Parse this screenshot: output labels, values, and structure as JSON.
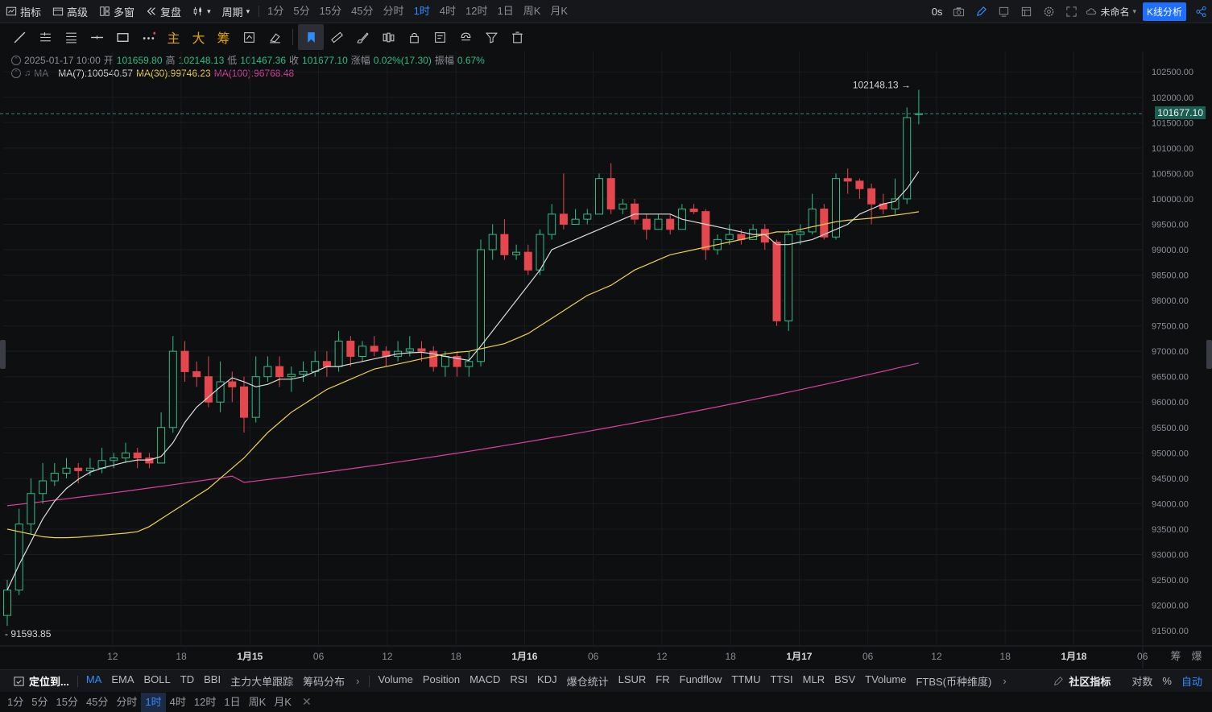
{
  "topbar": {
    "indicator_label": "指标",
    "advanced_label": "高级",
    "multiwindow_label": "多窗",
    "replay_label": "复盘",
    "period_label": "周期",
    "timeframes": [
      "1分",
      "5分",
      "15分",
      "45分",
      "分时",
      "1时",
      "4时",
      "12时",
      "1日",
      "周K",
      "月K"
    ],
    "active_timeframe": "1时",
    "countdown": "0s",
    "layout_name": "未命名",
    "kline_analysis": "K线分析"
  },
  "draw_tools": {
    "main": "主",
    "big": "大",
    "chip": "筹"
  },
  "legend": {
    "date": "2025-01-17 10:00",
    "open_label": "开",
    "open": "101659.80",
    "high_label": "高",
    "high": "102148.13",
    "low_label": "低",
    "low": "101467.36",
    "close_label": "收",
    "close": "101677.10",
    "change_label": "涨幅",
    "change": "0.02%(17.30)",
    "amp_label": "振幅",
    "amp": "0.67%",
    "ma_name": "MA",
    "ma7": "MA(7):100540.57",
    "ma30": "MA(30):99746.23",
    "ma100": "MA(100):96768.48"
  },
  "colors": {
    "up": "#2ebd85",
    "down": "#e5474f",
    "ma7": "#dcdcdc",
    "ma30": "#f0d34a",
    "ma100": "#d9409f",
    "accent": "#2f8cff"
  },
  "chart_data": {
    "type": "candlestick",
    "symbol_interval": "1h",
    "ylim": [
      91200,
      102900
    ],
    "y_ticks": [
      91500,
      92000,
      92500,
      93000,
      93500,
      94000,
      94500,
      95000,
      95500,
      96000,
      96500,
      97000,
      97500,
      98000,
      98500,
      99000,
      99500,
      100000,
      100500,
      101000,
      101500,
      102000,
      102500
    ],
    "x_ticks": [
      "12",
      "18",
      "1月15",
      "06",
      "12",
      "18",
      "1月16",
      "06",
      "12",
      "18",
      "1月17",
      "06",
      "12",
      "18",
      "1月18",
      "06"
    ],
    "current_price": "101677.10",
    "max_label": "102148.13",
    "min_label": "91593.85",
    "candles": [
      [
        91800,
        92300,
        91594,
        92500
      ],
      [
        92300,
        93600,
        92200,
        93900
      ],
      [
        93600,
        94200,
        93400,
        94500
      ],
      [
        94200,
        94450,
        94000,
        94800
      ],
      [
        94450,
        94600,
        94350,
        94800
      ],
      [
        94600,
        94700,
        94500,
        94900
      ],
      [
        94700,
        94650,
        94400,
        94800
      ],
      [
        94650,
        94700,
        94550,
        94900
      ],
      [
        94700,
        94850,
        94600,
        95100
      ],
      [
        94850,
        94900,
        94700,
        95000
      ],
      [
        94900,
        95000,
        94800,
        95200
      ],
      [
        95000,
        94900,
        94700,
        95100
      ],
      [
        94900,
        94800,
        94700,
        95000
      ],
      [
        94800,
        95500,
        94800,
        95800
      ],
      [
        95500,
        97000,
        95400,
        97300
      ],
      [
        97000,
        96600,
        96400,
        97200
      ],
      [
        96600,
        96500,
        96300,
        96800
      ],
      [
        96500,
        96000,
        95900,
        96900
      ],
      [
        96000,
        96400,
        95800,
        96800
      ],
      [
        96400,
        96300,
        96000,
        96600
      ],
      [
        96300,
        95700,
        95400,
        96500
      ],
      [
        95700,
        96500,
        95600,
        96900
      ],
      [
        96500,
        96700,
        96400,
        96900
      ],
      [
        96700,
        96500,
        96300,
        96900
      ],
      [
        96500,
        96550,
        96200,
        96700
      ],
      [
        96550,
        96600,
        96400,
        96800
      ],
      [
        96600,
        96800,
        96500,
        97000
      ],
      [
        96800,
        96700,
        96500,
        97000
      ],
      [
        96700,
        97200,
        96600,
        97400
      ],
      [
        97200,
        96900,
        96700,
        97300
      ],
      [
        96900,
        97100,
        96800,
        97200
      ],
      [
        97100,
        97000,
        96900,
        97300
      ],
      [
        97000,
        96900,
        96700,
        97100
      ],
      [
        96900,
        97000,
        96800,
        97200
      ],
      [
        97000,
        97050,
        96900,
        97300
      ],
      [
        97050,
        97000,
        96800,
        97200
      ],
      [
        97000,
        96700,
        96600,
        97100
      ],
      [
        96700,
        96900,
        96500,
        97000
      ],
      [
        96900,
        96700,
        96500,
        97000
      ],
      [
        96700,
        96800,
        96500,
        97000
      ],
      [
        96800,
        99000,
        96700,
        99200
      ],
      [
        99000,
        99300,
        98800,
        99500
      ],
      [
        99300,
        98900,
        98800,
        99600
      ],
      [
        98900,
        98950,
        98800,
        99100
      ],
      [
        98950,
        98600,
        98500,
        99100
      ],
      [
        98600,
        99300,
        98500,
        99400
      ],
      [
        99300,
        99700,
        99200,
        99900
      ],
      [
        99700,
        99500,
        99400,
        100500
      ],
      [
        99500,
        99600,
        99500,
        99800
      ],
      [
        99600,
        99700,
        99500,
        99800
      ],
      [
        99700,
        100400,
        99700,
        100500
      ],
      [
        100400,
        99800,
        99700,
        100700
      ],
      [
        99800,
        99900,
        99700,
        100000
      ],
      [
        99900,
        99600,
        99500,
        100000
      ],
      [
        99600,
        99400,
        99200,
        99700
      ],
      [
        99400,
        99600,
        99400,
        99700
      ],
      [
        99600,
        99400,
        99300,
        99700
      ],
      [
        99400,
        99800,
        99400,
        99900
      ],
      [
        99800,
        99750,
        99700,
        99900
      ],
      [
        99750,
        99000,
        98800,
        99800
      ],
      [
        99000,
        99200,
        98900,
        99300
      ],
      [
        99200,
        99300,
        99100,
        99500
      ],
      [
        99300,
        99200,
        99100,
        99400
      ],
      [
        99200,
        99400,
        99200,
        99500
      ],
      [
        99400,
        99150,
        99000,
        99500
      ],
      [
        99150,
        97600,
        97500,
        99200
      ],
      [
        97600,
        99300,
        97400,
        99400
      ],
      [
        99300,
        99350,
        99100,
        99500
      ],
      [
        99350,
        99800,
        99300,
        100100
      ],
      [
        99800,
        99250,
        99200,
        99900
      ],
      [
        99250,
        100400,
        99200,
        100500
      ],
      [
        100400,
        100350,
        100100,
        100600
      ],
      [
        100350,
        100200,
        100000,
        100400
      ],
      [
        100200,
        99900,
        99500,
        100300
      ],
      [
        99900,
        99800,
        99700,
        100100
      ],
      [
        99800,
        100000,
        99700,
        100400
      ],
      [
        100000,
        101600,
        99900,
        101800
      ],
      [
        101659.8,
        101677.1,
        101467.36,
        102148.13
      ]
    ],
    "ma7": [
      92300,
      92800,
      93250,
      93700,
      94050,
      94300,
      94480,
      94620,
      94700,
      94760,
      94820,
      94860,
      94860,
      94930,
      95200,
      95600,
      95900,
      96100,
      96300,
      96480,
      96400,
      96300,
      96350,
      96450,
      96450,
      96500,
      96600,
      96700,
      96700,
      96750,
      96800,
      96850,
      96900,
      96950,
      96970,
      96980,
      96950,
      96900,
      96860,
      96820,
      97100,
      97400,
      97700,
      98000,
      98300,
      98600,
      99000,
      99100,
      99200,
      99300,
      99400,
      99500,
      99600,
      99700,
      99700,
      99700,
      99700,
      99600,
      99550,
      99500,
      99450,
      99400,
      99350,
      99300,
      99300,
      99100,
      99100,
      99150,
      99200,
      99300,
      99400,
      99500,
      99700,
      99800,
      99900,
      99950,
      100200,
      100540.57
    ],
    "ma30": [
      93500,
      93450,
      93400,
      93350,
      93330,
      93330,
      93340,
      93360,
      93380,
      93400,
      93420,
      93450,
      93550,
      93700,
      93850,
      94000,
      94150,
      94300,
      94500,
      94700,
      94900,
      95150,
      95400,
      95600,
      95800,
      95950,
      96100,
      96250,
      96350,
      96450,
      96550,
      96650,
      96700,
      96750,
      96800,
      96850,
      96900,
      96950,
      96980,
      97000,
      97050,
      97100,
      97150,
      97250,
      97350,
      97500,
      97650,
      97800,
      97950,
      98100,
      98200,
      98300,
      98450,
      98600,
      98700,
      98800,
      98900,
      98950,
      99000,
      99050,
      99100,
      99150,
      99200,
      99250,
      99300,
      99350,
      99350,
      99400,
      99450,
      99500,
      99550,
      99580,
      99600,
      99620,
      99650,
      99680,
      99710,
      99746.23
    ]
  },
  "indicators": {
    "locate_label": "定位到...",
    "main_list": [
      "MA",
      "EMA",
      "BOLL",
      "TD",
      "BBI",
      "主力大单跟踪",
      "筹码分布"
    ],
    "active_main": "MA",
    "sub_list": [
      "Volume",
      "Position",
      "MACD",
      "RSI",
      "KDJ",
      "爆仓统计",
      "LSUR",
      "FR",
      "Fundflow",
      "TTMU",
      "TTSI",
      "MLR",
      "BSV",
      "TVolume",
      "FTBS(币种维度)"
    ],
    "community_label": "社区指标",
    "log_label": "对数",
    "percent_label": "%",
    "auto_label": "自动"
  },
  "bottom_timeframes": {
    "items": [
      "1分",
      "5分",
      "15分",
      "45分",
      "分时",
      "1时",
      "4时",
      "12时",
      "1日",
      "周K",
      "月K"
    ],
    "active": "1时"
  },
  "corner": {
    "chip": "筹",
    "explode": "爆"
  }
}
